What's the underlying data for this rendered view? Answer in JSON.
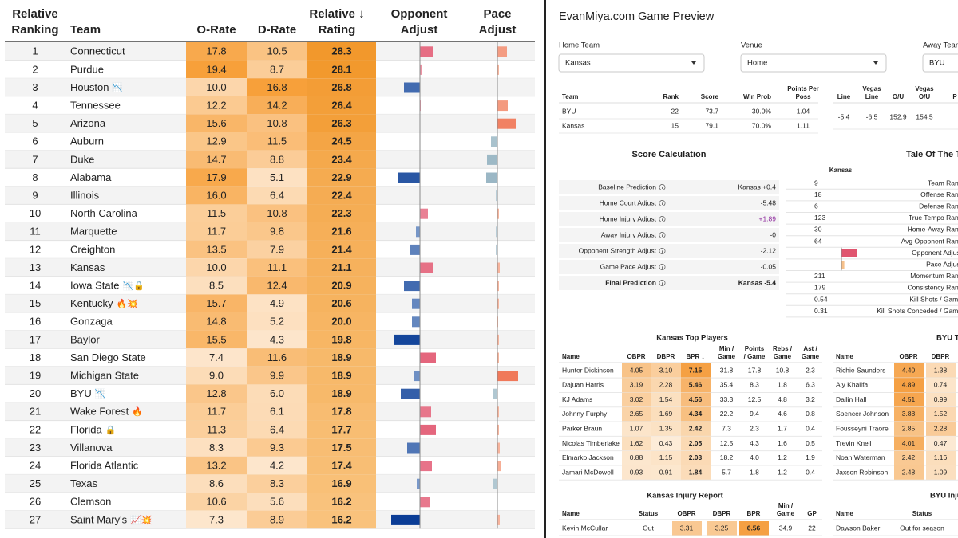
{
  "rankings": {
    "headers": [
      [
        "Relative",
        "Ranking"
      ],
      [
        "Team"
      ],
      [
        "O-Rate"
      ],
      [
        "D-Rate"
      ],
      [
        "Relative ↓",
        "Rating"
      ],
      [
        "Opponent",
        "Adjust"
      ],
      [
        "Pace",
        "Adjust"
      ]
    ],
    "rows": [
      {
        "rank": "1",
        "team": "Connecticut",
        "o_rate": "17.8",
        "d_rate": "10.5",
        "rating": "28.3",
        "opponent_adjust": 1.7,
        "pace_adjust": 1.2
      },
      {
        "rank": "2",
        "team": "Purdue",
        "o_rate": "19.4",
        "d_rate": "8.7",
        "rating": "28.1",
        "opponent_adjust": 0.2,
        "pace_adjust": 0.2
      },
      {
        "rank": "3",
        "team": "Houston",
        "icons": "📉",
        "o_rate": "10.0",
        "d_rate": "16.8",
        "rating": "26.8",
        "opponent_adjust": -2.0,
        "pace_adjust": 0
      },
      {
        "rank": "4",
        "team": "Tennessee",
        "o_rate": "12.2",
        "d_rate": "14.2",
        "rating": "26.4",
        "opponent_adjust": 0.1,
        "pace_adjust": 1.3
      },
      {
        "rank": "5",
        "team": "Arizona",
        "o_rate": "15.6",
        "d_rate": "10.8",
        "rating": "26.3",
        "opponent_adjust": 0,
        "pace_adjust": 2.3
      },
      {
        "rank": "6",
        "team": "Auburn",
        "o_rate": "12.9",
        "d_rate": "11.5",
        "rating": "24.5",
        "opponent_adjust": 0,
        "pace_adjust": -0.8
      },
      {
        "rank": "7",
        "team": "Duke",
        "o_rate": "14.7",
        "d_rate": "8.8",
        "rating": "23.4",
        "opponent_adjust": 0,
        "pace_adjust": -1.3
      },
      {
        "rank": "8",
        "team": "Alabama",
        "o_rate": "17.9",
        "d_rate": "5.1",
        "rating": "22.9",
        "opponent_adjust": -2.7,
        "pace_adjust": -1.4
      },
      {
        "rank": "9",
        "team": "Illinois",
        "o_rate": "16.0",
        "d_rate": "6.4",
        "rating": "22.4",
        "opponent_adjust": 0,
        "pace_adjust": -0.2
      },
      {
        "rank": "10",
        "team": "North Carolina",
        "o_rate": "11.5",
        "d_rate": "10.8",
        "rating": "22.3",
        "opponent_adjust": 1.0,
        "pace_adjust": 0.2
      },
      {
        "rank": "11",
        "team": "Marquette",
        "o_rate": "11.7",
        "d_rate": "9.8",
        "rating": "21.6",
        "opponent_adjust": -0.5,
        "pace_adjust": -0.2
      },
      {
        "rank": "12",
        "team": "Creighton",
        "o_rate": "13.5",
        "d_rate": "7.9",
        "rating": "21.4",
        "opponent_adjust": -1.2,
        "pace_adjust": -0.2
      },
      {
        "rank": "13",
        "team": "Kansas",
        "o_rate": "10.0",
        "d_rate": "11.1",
        "rating": "21.1",
        "opponent_adjust": 1.6,
        "pace_adjust": 0.3
      },
      {
        "rank": "14",
        "team": "Iowa State",
        "icons": "📉🔒",
        "o_rate": "8.5",
        "d_rate": "12.4",
        "rating": "20.9",
        "opponent_adjust": -2.0,
        "pace_adjust": 0.2
      },
      {
        "rank": "15",
        "team": "Kentucky",
        "icons": "🔥💥",
        "o_rate": "15.7",
        "d_rate": "4.9",
        "rating": "20.6",
        "opponent_adjust": -1.0,
        "pace_adjust": 0.2
      },
      {
        "rank": "16",
        "team": "Gonzaga",
        "o_rate": "14.8",
        "d_rate": "5.2",
        "rating": "20.0",
        "opponent_adjust": -1.0,
        "pace_adjust": 0.1
      },
      {
        "rank": "17",
        "team": "Baylor",
        "o_rate": "15.5",
        "d_rate": "4.3",
        "rating": "19.8",
        "opponent_adjust": -3.3,
        "pace_adjust": 0.2
      },
      {
        "rank": "18",
        "team": "San Diego State",
        "o_rate": "7.4",
        "d_rate": "11.6",
        "rating": "18.9",
        "opponent_adjust": 2.0,
        "pace_adjust": 0.2
      },
      {
        "rank": "19",
        "team": "Michigan State",
        "o_rate": "9.0",
        "d_rate": "9.9",
        "rating": "18.9",
        "opponent_adjust": -0.7,
        "pace_adjust": 2.6
      },
      {
        "rank": "20",
        "team": "BYU",
        "icons": "📉",
        "o_rate": "12.8",
        "d_rate": "6.0",
        "rating": "18.9",
        "opponent_adjust": -2.4,
        "pace_adjust": -0.5
      },
      {
        "rank": "21",
        "team": "Wake Forest",
        "icons": "🔥",
        "o_rate": "11.7",
        "d_rate": "6.1",
        "rating": "17.8",
        "opponent_adjust": 1.4,
        "pace_adjust": 0.2
      },
      {
        "rank": "22",
        "team": "Florida",
        "icons": "🔒",
        "o_rate": "11.3",
        "d_rate": "6.4",
        "rating": "17.7",
        "opponent_adjust": 2.0,
        "pace_adjust": 0.2
      },
      {
        "rank": "23",
        "team": "Villanova",
        "o_rate": "8.3",
        "d_rate": "9.3",
        "rating": "17.5",
        "opponent_adjust": -1.6,
        "pace_adjust": 0.3
      },
      {
        "rank": "24",
        "team": "Florida Atlantic",
        "o_rate": "13.2",
        "d_rate": "4.2",
        "rating": "17.4",
        "opponent_adjust": 1.5,
        "pace_adjust": 0.5
      },
      {
        "rank": "25",
        "team": "Texas",
        "o_rate": "8.6",
        "d_rate": "8.3",
        "rating": "16.9",
        "opponent_adjust": -0.4,
        "pace_adjust": -0.5
      },
      {
        "rank": "26",
        "team": "Clemson",
        "o_rate": "10.6",
        "d_rate": "5.6",
        "rating": "16.2",
        "opponent_adjust": 1.3,
        "pace_adjust": 0
      },
      {
        "rank": "27",
        "team": "Saint Mary's",
        "icons": "📈💥",
        "o_rate": "7.3",
        "d_rate": "8.9",
        "rating": "16.2",
        "opponent_adjust": -3.6,
        "pace_adjust": 0.3
      }
    ]
  },
  "preview": {
    "title": "EvanMiya.com Game Preview",
    "selectors": [
      {
        "label": "Home Team",
        "value": "Kansas"
      },
      {
        "label": "Venue",
        "value": "Home"
      },
      {
        "label": "Away Team",
        "value": "BYU"
      }
    ],
    "matchup": {
      "headers": [
        [
          "Team"
        ],
        [
          "Rank"
        ],
        [
          "Score"
        ],
        [
          "Win Prob"
        ],
        [
          "Points Per",
          "Poss"
        ]
      ],
      "rows": [
        [
          "BYU",
          "22",
          "73.7",
          "30.0%",
          "1.04"
        ],
        [
          "Kansas",
          "15",
          "79.1",
          "70.0%",
          "1.11"
        ]
      ]
    },
    "lines": {
      "headers": [
        [
          "Line"
        ],
        [
          "Vegas",
          "Line"
        ],
        [
          "O/U"
        ],
        [
          "Vegas",
          "O/U"
        ],
        [
          "P"
        ]
      ],
      "rows": [
        [
          "-5.4",
          "-6.5",
          "152.9",
          "154.5"
        ]
      ]
    },
    "score_calc": {
      "title": "Score Calculation",
      "rows": [
        [
          "Baseline Prediction",
          "Kansas +0.4"
        ],
        [
          "Home Court Adjust",
          "-5.48"
        ],
        [
          "Home Injury Adjust",
          "+1.89"
        ],
        [
          "Away Injury Adjust",
          "-0"
        ],
        [
          "Opponent Strength Adjust",
          "-2.12"
        ],
        [
          "Game Pace Adjust",
          "-0.05"
        ],
        [
          "Final Prediction",
          "Kansas -5.4"
        ]
      ]
    },
    "tale": {
      "title": "Tale Of The Tape",
      "team": "Kansas",
      "rows": [
        {
          "value": "9",
          "label": "Team Rank"
        },
        {
          "value": "18",
          "label": "Offense Rank"
        },
        {
          "value": "6",
          "label": "Defense Rank"
        },
        {
          "value": "123",
          "label": "True Tempo Rank"
        },
        {
          "value": "30",
          "label": "Home-Away Rank"
        },
        {
          "value": "64",
          "label": "Avg Opponent Rank"
        },
        {
          "label": "Opponent Adjust"
        },
        {
          "label": "Pace Adjust"
        },
        {
          "value": "211",
          "label": "Momentum Rank"
        },
        {
          "value": "179",
          "label": "Consistency Rank"
        },
        {
          "value": "0.54",
          "label": "Kill Shots / Game"
        },
        {
          "value": "0.31",
          "label": "Kill Shots Conceded / Game"
        }
      ]
    },
    "home_players": {
      "title": "Kansas Top Players",
      "headers": [
        [
          "Name"
        ],
        [
          "OBPR"
        ],
        [
          "DBPR"
        ],
        [
          "BPR ↓"
        ],
        [
          "Min /",
          "Game"
        ],
        [
          "Points",
          "/ Game"
        ],
        [
          "Rebs /",
          "Game"
        ],
        [
          "Ast /",
          "Game"
        ]
      ],
      "rows": [
        [
          "Hunter Dickinson",
          "4.05",
          "3.10",
          "7.15",
          "31.8",
          "17.8",
          "10.8",
          "2.3"
        ],
        [
          "Dajuan Harris",
          "3.19",
          "2.28",
          "5.46",
          "35.4",
          "8.3",
          "1.8",
          "6.3"
        ],
        [
          "KJ Adams",
          "3.02",
          "1.54",
          "4.56",
          "33.3",
          "12.5",
          "4.8",
          "3.2"
        ],
        [
          "Johnny Furphy",
          "2.65",
          "1.69",
          "4.34",
          "22.2",
          "9.4",
          "4.6",
          "0.8"
        ],
        [
          "Parker Braun",
          "1.07",
          "1.35",
          "2.42",
          "7.3",
          "2.3",
          "1.7",
          "0.4"
        ],
        [
          "Nicolas Timberlake",
          "1.62",
          "0.43",
          "2.05",
          "12.5",
          "4.3",
          "1.6",
          "0.5"
        ],
        [
          "Elmarko Jackson",
          "0.88",
          "1.15",
          "2.03",
          "18.2",
          "4.0",
          "1.2",
          "1.9"
        ],
        [
          "Jamari McDowell",
          "0.93",
          "0.91",
          "1.84",
          "5.7",
          "1.8",
          "1.2",
          "0.4"
        ]
      ]
    },
    "away_players": {
      "title": "BYU Top Players",
      "headers": [
        [
          "Name"
        ],
        [
          "OBPR"
        ],
        [
          "DBPR"
        ]
      ],
      "rows": [
        [
          "Richie Saunders",
          "4.40",
          "1.38"
        ],
        [
          "Aly Khalifa",
          "4.89",
          "0.74"
        ],
        [
          "Dallin Hall",
          "4.51",
          "0.99"
        ],
        [
          "Spencer Johnson",
          "3.88",
          "1.52"
        ],
        [
          "Fousseyni Traore",
          "2.85",
          "2.28"
        ],
        [
          "Trevin Knell",
          "4.01",
          "0.47"
        ],
        [
          "Noah Waterman",
          "2.42",
          "1.16"
        ],
        [
          "Jaxson Robinson",
          "2.48",
          "1.09"
        ]
      ]
    },
    "home_injuries": {
      "title": "Kansas Injury Report",
      "headers": [
        [
          "Name"
        ],
        [
          "Status"
        ],
        [
          "OBPR"
        ],
        [
          "DBPR"
        ],
        [
          "BPR"
        ],
        [
          "Min /",
          "Game"
        ],
        [
          "GP"
        ]
      ],
      "rows": [
        [
          "Kevin McCullar",
          "Out",
          "3.31",
          "3.25",
          "6.56",
          "34.9",
          "22"
        ]
      ]
    },
    "away_injuries": {
      "title": "BYU Injury Report",
      "headers": [
        [
          "Name"
        ],
        [
          "Status"
        ]
      ],
      "rows": [
        [
          "Dawson Baker",
          "Out for season"
        ]
      ]
    }
  }
}
